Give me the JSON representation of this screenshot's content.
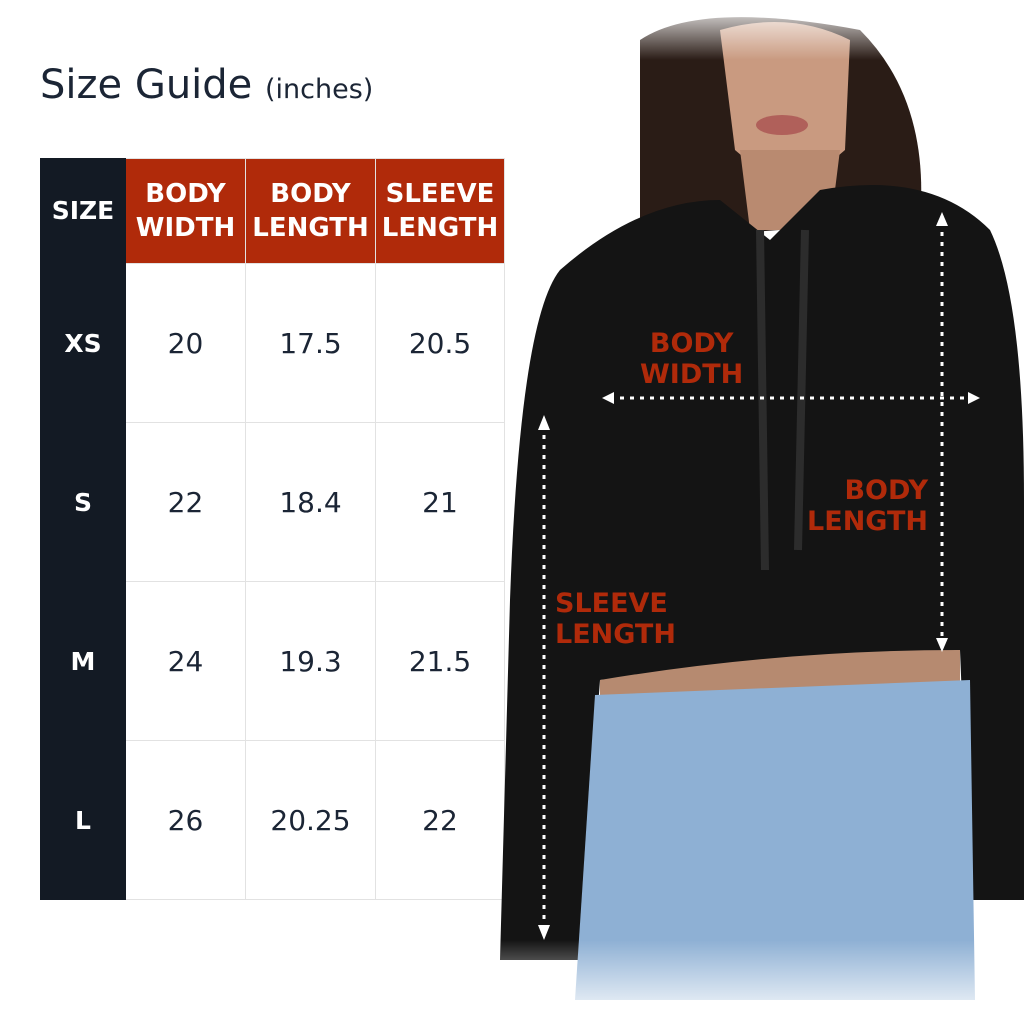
{
  "title": "Size Guide",
  "unit": "(inches)",
  "headers": [
    "SIZE",
    "BODY WIDTH",
    "BODY LENGTH",
    "SLEEVE LENGTH"
  ],
  "header_lines": [
    [
      "SIZE"
    ],
    [
      "BODY",
      "WIDTH"
    ],
    [
      "BODY",
      "LENGTH"
    ],
    [
      "SLEEVE",
      "LENGTH"
    ]
  ],
  "rows": [
    {
      "size": "XS",
      "body_width": "20",
      "body_length": "17.5",
      "sleeve_length": "20.5"
    },
    {
      "size": "S",
      "body_width": "22",
      "body_length": "18.4",
      "sleeve_length": "21"
    },
    {
      "size": "M",
      "body_width": "24",
      "body_length": "19.3",
      "sleeve_length": "21.5"
    },
    {
      "size": "L",
      "body_width": "26",
      "body_length": "20.25",
      "sleeve_length": "22"
    }
  ],
  "diagram": {
    "body_width": [
      "BODY",
      "WIDTH"
    ],
    "body_length": [
      "BODY",
      "LENGTH"
    ],
    "sleeve_length": [
      "SLEEVE",
      "LENGTH"
    ]
  },
  "colors": {
    "header": "#b02a0a",
    "size_column": "#131a24",
    "text": "#1b2535"
  }
}
